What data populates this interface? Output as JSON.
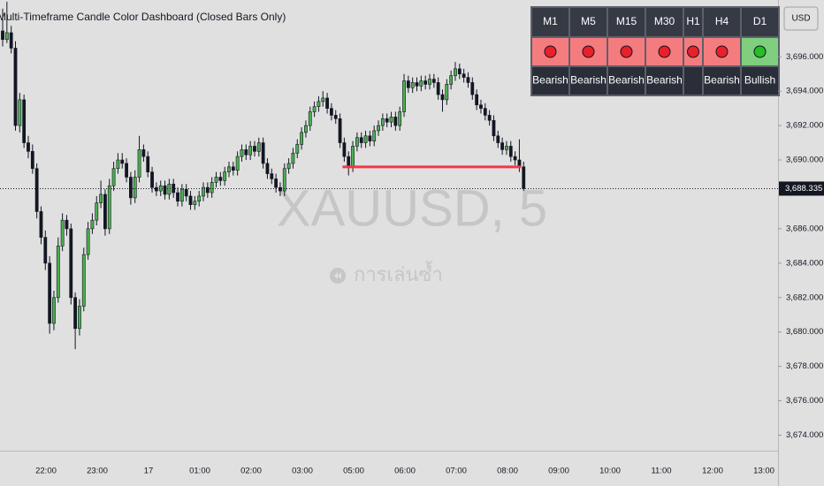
{
  "chart_data": {
    "type": "candlestick",
    "title": "Multi-Timeframe Candle Color Dashboard (Closed Bars Only)",
    "watermark": "XAUUSD, 5",
    "replay_label": "การเล่นซ้ำ",
    "currency": "USD",
    "up_color": "#4caf50",
    "down_color": "#131722",
    "ylim": [
      3673.1,
      3699.3
    ],
    "yticks": [
      {
        "value": 3696,
        "label": "3,696.000"
      },
      {
        "value": 3694,
        "label": "3,694.000"
      },
      {
        "value": 3692,
        "label": "3,692.000"
      },
      {
        "value": 3690,
        "label": "3,690.000"
      },
      {
        "value": 3686,
        "label": "3,686.000"
      },
      {
        "value": 3684,
        "label": "3,684.000"
      },
      {
        "value": 3682,
        "label": "3,682.000"
      },
      {
        "value": 3680,
        "label": "3,680.000"
      },
      {
        "value": 3678,
        "label": "3,678.000"
      },
      {
        "value": 3676,
        "label": "3,676.000"
      },
      {
        "value": 3674,
        "label": "3,674.000"
      }
    ],
    "last_price": {
      "value": 3688.335,
      "label": "3,688.335"
    },
    "level_line": {
      "value": 3689.6,
      "color": "#f23645"
    },
    "x_labels": [
      "22:00",
      "23:00",
      "17",
      "01:00",
      "02:00",
      "03:00",
      "05:00",
      "06:00",
      "07:00",
      "08:00",
      "09:00",
      "10:00",
      "11:00",
      "12:00",
      "13:00"
    ],
    "candles": [
      [
        3697.5,
        3698.8,
        3696.6,
        3697.0
      ],
      [
        3697.0,
        3699.2,
        3696.8,
        3697.4
      ],
      [
        3697.4,
        3697.8,
        3696.2,
        3696.5
      ],
      [
        3696.5,
        3696.9,
        3691.7,
        3692.0
      ],
      [
        3692.0,
        3693.9,
        3691.6,
        3693.5
      ],
      [
        3693.5,
        3693.8,
        3690.7,
        3691.0
      ],
      [
        3691.0,
        3691.4,
        3690.1,
        3690.5
      ],
      [
        3690.5,
        3690.9,
        3689.2,
        3689.5
      ],
      [
        3689.5,
        3689.8,
        3686.6,
        3687.0
      ],
      [
        3687.0,
        3687.3,
        3685.1,
        3685.5
      ],
      [
        3685.5,
        3685.9,
        3683.6,
        3684.0
      ],
      [
        3684.0,
        3684.4,
        3679.9,
        3680.5
      ],
      [
        3680.5,
        3682.4,
        3680.1,
        3682.0
      ],
      [
        3682.0,
        3685.5,
        3681.7,
        3685.0
      ],
      [
        3685.0,
        3686.9,
        3684.7,
        3686.5
      ],
      [
        3686.5,
        3686.8,
        3685.6,
        3686.0
      ],
      [
        3686.0,
        3686.3,
        3681.6,
        3682.0
      ],
      [
        3682.0,
        3682.3,
        3679.0,
        3680.2
      ],
      [
        3680.2,
        3681.9,
        3679.8,
        3681.5
      ],
      [
        3681.5,
        3684.9,
        3681.2,
        3684.5
      ],
      [
        3684.5,
        3686.4,
        3684.2,
        3686.0
      ],
      [
        3686.0,
        3686.9,
        3685.7,
        3686.5
      ],
      [
        3686.5,
        3687.9,
        3686.2,
        3687.5
      ],
      [
        3687.5,
        3688.8,
        3687.2,
        3688.0
      ],
      [
        3688.0,
        3688.3,
        3685.6,
        3686.0
      ],
      [
        3686.0,
        3688.9,
        3685.7,
        3688.5
      ],
      [
        3688.5,
        3689.9,
        3688.2,
        3689.5
      ],
      [
        3689.5,
        3690.4,
        3689.2,
        3690.0
      ],
      [
        3690.0,
        3690.4,
        3689.5,
        3689.8
      ],
      [
        3689.8,
        3690.1,
        3688.7,
        3689.0
      ],
      [
        3689.0,
        3689.3,
        3687.4,
        3687.8
      ],
      [
        3687.8,
        3689.4,
        3687.5,
        3689.0
      ],
      [
        3689.0,
        3691.4,
        3688.7,
        3690.6
      ],
      [
        3690.6,
        3690.9,
        3689.9,
        3690.2
      ],
      [
        3690.2,
        3690.5,
        3689.0,
        3689.3
      ],
      [
        3689.3,
        3689.6,
        3688.1,
        3688.4
      ],
      [
        3688.4,
        3688.7,
        3687.9,
        3688.2
      ],
      [
        3688.2,
        3688.8,
        3687.9,
        3688.5
      ],
      [
        3688.5,
        3688.8,
        3687.7,
        3688.0
      ],
      [
        3688.0,
        3688.9,
        3687.7,
        3688.6
      ],
      [
        3688.6,
        3688.9,
        3687.8,
        3688.1
      ],
      [
        3688.1,
        3688.4,
        3687.3,
        3687.6
      ],
      [
        3687.6,
        3688.6,
        3687.3,
        3688.3
      ],
      [
        3688.3,
        3688.6,
        3687.6,
        3687.9
      ],
      [
        3687.9,
        3688.2,
        3687.1,
        3687.4
      ],
      [
        3687.4,
        3687.9,
        3687.1,
        3687.6
      ],
      [
        3687.6,
        3688.2,
        3687.3,
        3687.9
      ],
      [
        3687.9,
        3688.7,
        3687.6,
        3688.4
      ],
      [
        3688.4,
        3688.7,
        3687.8,
        3688.1
      ],
      [
        3688.1,
        3689.0,
        3687.8,
        3688.7
      ],
      [
        3688.7,
        3689.3,
        3688.4,
        3689.0
      ],
      [
        3689.0,
        3689.3,
        3688.5,
        3688.8
      ],
      [
        3688.8,
        3689.6,
        3688.5,
        3689.3
      ],
      [
        3689.3,
        3689.9,
        3689.0,
        3689.6
      ],
      [
        3689.6,
        3689.9,
        3689.1,
        3689.4
      ],
      [
        3689.4,
        3690.5,
        3689.1,
        3690.2
      ],
      [
        3690.2,
        3690.9,
        3689.9,
        3690.6
      ],
      [
        3690.6,
        3690.9,
        3690.0,
        3690.3
      ],
      [
        3690.3,
        3691.1,
        3690.0,
        3690.8
      ],
      [
        3690.8,
        3691.1,
        3690.2,
        3690.5
      ],
      [
        3690.5,
        3691.3,
        3690.2,
        3691.0
      ],
      [
        3691.0,
        3691.3,
        3689.5,
        3689.8
      ],
      [
        3689.8,
        3690.1,
        3688.9,
        3689.2
      ],
      [
        3689.2,
        3689.5,
        3688.6,
        3688.9
      ],
      [
        3688.9,
        3689.2,
        3688.1,
        3688.4
      ],
      [
        3688.4,
        3688.7,
        3687.9,
        3688.2
      ],
      [
        3688.2,
        3689.8,
        3687.9,
        3689.5
      ],
      [
        3689.5,
        3690.1,
        3689.2,
        3689.8
      ],
      [
        3689.8,
        3690.7,
        3689.5,
        3690.4
      ],
      [
        3690.4,
        3691.2,
        3690.1,
        3690.9
      ],
      [
        3690.9,
        3691.9,
        3690.6,
        3691.6
      ],
      [
        3691.6,
        3692.3,
        3691.3,
        3692.0
      ],
      [
        3692.0,
        3693.1,
        3691.7,
        3692.8
      ],
      [
        3692.8,
        3693.4,
        3692.5,
        3693.1
      ],
      [
        3693.1,
        3693.7,
        3692.8,
        3693.4
      ],
      [
        3693.4,
        3694.0,
        3693.1,
        3693.6
      ],
      [
        3693.6,
        3693.9,
        3692.7,
        3693.0
      ],
      [
        3693.0,
        3693.3,
        3692.3,
        3692.6
      ],
      [
        3692.6,
        3692.9,
        3692.1,
        3692.4
      ],
      [
        3692.4,
        3692.7,
        3690.7,
        3691.0
      ],
      [
        3691.0,
        3691.3,
        3689.9,
        3690.2
      ],
      [
        3690.2,
        3690.5,
        3689.1,
        3689.6
      ],
      [
        3689.6,
        3691.1,
        3689.3,
        3690.8
      ],
      [
        3690.8,
        3691.6,
        3690.5,
        3691.3
      ],
      [
        3691.3,
        3691.6,
        3690.7,
        3691.0
      ],
      [
        3691.0,
        3691.7,
        3690.7,
        3691.4
      ],
      [
        3691.4,
        3691.7,
        3690.8,
        3691.1
      ],
      [
        3691.1,
        3692.0,
        3690.8,
        3691.7
      ],
      [
        3691.7,
        3692.3,
        3691.4,
        3692.0
      ],
      [
        3692.0,
        3692.7,
        3691.7,
        3692.4
      ],
      [
        3692.4,
        3692.7,
        3691.9,
        3692.2
      ],
      [
        3692.2,
        3692.8,
        3691.9,
        3692.5
      ],
      [
        3692.5,
        3692.8,
        3691.7,
        3692.0
      ],
      [
        3692.0,
        3693.1,
        3691.7,
        3692.8
      ],
      [
        3692.8,
        3695.0,
        3692.5,
        3694.6
      ],
      [
        3694.6,
        3694.9,
        3693.9,
        3694.2
      ],
      [
        3694.2,
        3694.8,
        3693.9,
        3694.5
      ],
      [
        3694.5,
        3694.8,
        3694.0,
        3694.3
      ],
      [
        3694.3,
        3694.9,
        3694.0,
        3694.6
      ],
      [
        3694.6,
        3694.9,
        3694.1,
        3694.4
      ],
      [
        3694.4,
        3695.0,
        3694.1,
        3694.7
      ],
      [
        3694.7,
        3695.0,
        3694.2,
        3694.5
      ],
      [
        3694.5,
        3694.8,
        3693.5,
        3693.8
      ],
      [
        3693.8,
        3694.1,
        3692.8,
        3693.5
      ],
      [
        3693.5,
        3694.7,
        3693.2,
        3694.4
      ],
      [
        3694.4,
        3695.2,
        3694.1,
        3694.9
      ],
      [
        3694.9,
        3695.7,
        3694.6,
        3695.3
      ],
      [
        3695.3,
        3695.6,
        3694.7,
        3695.0
      ],
      [
        3695.0,
        3695.3,
        3694.5,
        3694.8
      ],
      [
        3694.8,
        3695.1,
        3694.2,
        3694.5
      ],
      [
        3694.5,
        3694.8,
        3693.5,
        3693.8
      ],
      [
        3693.8,
        3694.1,
        3692.9,
        3693.2
      ],
      [
        3693.2,
        3693.5,
        3692.7,
        3693.0
      ],
      [
        3693.0,
        3693.3,
        3692.3,
        3692.6
      ],
      [
        3692.6,
        3692.9,
        3692.0,
        3692.3
      ],
      [
        3692.3,
        3692.6,
        3691.1,
        3691.4
      ],
      [
        3691.4,
        3691.7,
        3690.7,
        3691.0
      ],
      [
        3691.0,
        3691.3,
        3690.3,
        3690.6
      ],
      [
        3690.6,
        3691.1,
        3690.3,
        3690.8
      ],
      [
        3690.8,
        3691.1,
        3689.9,
        3690.2
      ],
      [
        3690.2,
        3690.5,
        3689.7,
        3690.0
      ],
      [
        3690.0,
        3691.2,
        3689.3,
        3689.6
      ],
      [
        3689.6,
        3689.9,
        3688.2,
        3688.335
      ]
    ]
  },
  "dashboard": {
    "columns": [
      {
        "timeframe": "M1",
        "signal": "Bearish",
        "cell": "#f47c7f",
        "circle": "#e8202a"
      },
      {
        "timeframe": "M5",
        "signal": "Bearish",
        "cell": "#f47c7f",
        "circle": "#e8202a"
      },
      {
        "timeframe": "M15",
        "signal": "Bearish",
        "cell": "#f47c7f",
        "circle": "#e8202a"
      },
      {
        "timeframe": "M30",
        "signal": "Bearish",
        "cell": "#f47c7f",
        "circle": "#e8202a"
      },
      {
        "timeframe": "H1",
        "signal": null,
        "cell": "#f47c7f",
        "circle": "#e8202a"
      },
      {
        "timeframe": "H4",
        "signal": "Bearish",
        "cell": "#f47c7f",
        "circle": "#e8202a"
      },
      {
        "timeframe": "D1",
        "signal": "Bullish",
        "cell": "#7fcf7f",
        "circle": "#22c022"
      }
    ]
  }
}
